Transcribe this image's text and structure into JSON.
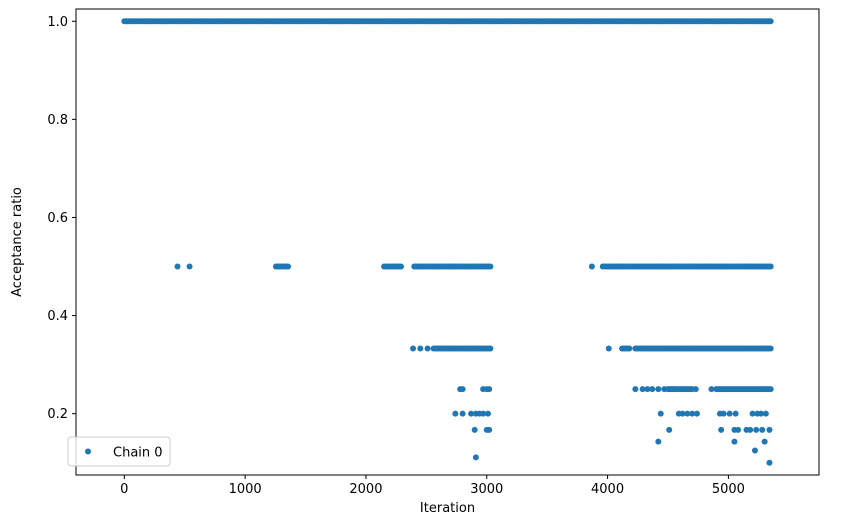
{
  "chart_data": {
    "type": "scatter",
    "xlabel": "Iteration",
    "ylabel": "Acceptance ratio",
    "xlim": [
      -400,
      5750
    ],
    "ylim": [
      0.075,
      1.025
    ],
    "x_ticks": [
      0,
      1000,
      2000,
      3000,
      4000,
      5000
    ],
    "y_ticks": [
      0.2,
      0.4,
      0.6,
      0.8,
      1.0
    ],
    "x_tick_labels": [
      "0",
      "1000",
      "2000",
      "3000",
      "4000",
      "5000"
    ],
    "y_tick_labels": [
      "0.2",
      "0.4",
      "0.6",
      "0.8",
      "1.0"
    ],
    "grid": false,
    "legend_position": "lower-left",
    "marker_color": "#1f77b4",
    "series": [
      {
        "name": "Chain 0",
        "bands": [
          {
            "y": 1.0,
            "x_ranges": [
              [
                0,
                5350
              ]
            ]
          },
          {
            "y": 0.5,
            "x": [
              440,
              540
            ],
            "x_ranges": [
              [
                1255,
                1355
              ],
              [
                2150,
                2290
              ],
              [
                2400,
                3030
              ],
              [
                3870,
                3870
              ],
              [
                3960,
                5350
              ]
            ]
          },
          {
            "y": 0.333,
            "x": [
              2390,
              2450,
              2510
            ],
            "x_ranges": [
              [
                2560,
                3030
              ],
              [
                4010,
                4010
              ],
              [
                4120,
                4180
              ],
              [
                4230,
                5350
              ]
            ]
          },
          {
            "y": 0.25,
            "x": [
              2780,
              2800,
              2970,
              3000,
              3020,
              4230,
              4290,
              4330,
              4370,
              4420,
              4470,
              4540,
              4730,
              4860
            ],
            "x_ranges": [
              [
                4500,
                4700
              ],
              [
                4900,
                5350
              ]
            ]
          },
          {
            "y": 0.2,
            "x": [
              2740,
              2800,
              2870,
              2910,
              2940,
              2970,
              3010,
              4440,
              4590,
              4620,
              4660,
              4700,
              4740,
              4930,
              4960,
              5010,
              5060,
              5200,
              5240,
              5270,
              5310
            ]
          },
          {
            "y": 0.167,
            "x": [
              2900,
              3000,
              3020,
              4510,
              4940,
              5050,
              5080,
              5150,
              5180,
              5230,
              5280,
              5340
            ]
          },
          {
            "y": 0.143,
            "x": [
              4420,
              5050,
              5300
            ]
          },
          {
            "y": 0.125,
            "x": [
              5220
            ]
          },
          {
            "y": 0.111,
            "x": [
              2910
            ]
          },
          {
            "y": 0.1,
            "x": [
              5340
            ]
          }
        ]
      }
    ]
  }
}
